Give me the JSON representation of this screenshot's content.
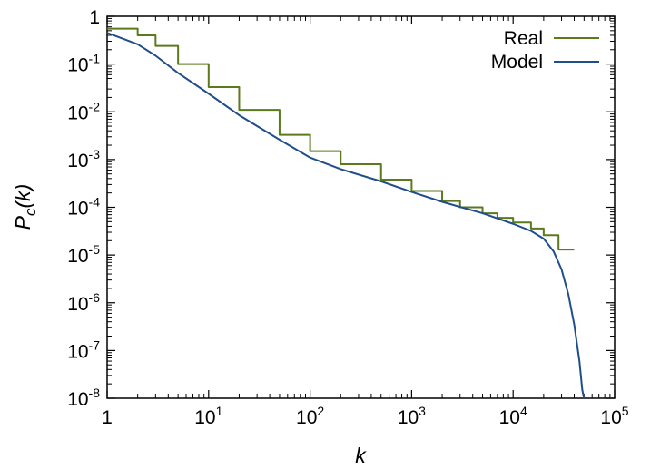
{
  "chart_data": {
    "type": "line",
    "title": "",
    "xlabel": "k",
    "ylabel": "P_c(k)",
    "xscale": "log",
    "yscale": "log",
    "xlim": [
      1,
      100000
    ],
    "ylim": [
      1e-08,
      1
    ],
    "grid": false,
    "legend_position": "top-right",
    "x_ticks": [
      {
        "value": 1,
        "base": "1",
        "exp": ""
      },
      {
        "value": 10,
        "base": "10",
        "exp": "1"
      },
      {
        "value": 100,
        "base": "10",
        "exp": "2"
      },
      {
        "value": 1000,
        "base": "10",
        "exp": "3"
      },
      {
        "value": 10000,
        "base": "10",
        "exp": "4"
      },
      {
        "value": 100000,
        "base": "10",
        "exp": "5"
      }
    ],
    "y_ticks": [
      {
        "value": 1,
        "base": "1",
        "exp": ""
      },
      {
        "value": 0.1,
        "base": "10",
        "exp": "-1"
      },
      {
        "value": 0.01,
        "base": "10",
        "exp": "-2"
      },
      {
        "value": 0.001,
        "base": "10",
        "exp": "-3"
      },
      {
        "value": 0.0001,
        "base": "10",
        "exp": "-4"
      },
      {
        "value": 1e-05,
        "base": "10",
        "exp": "-5"
      },
      {
        "value": 1e-06,
        "base": "10",
        "exp": "-6"
      },
      {
        "value": 1e-07,
        "base": "10",
        "exp": "-7"
      },
      {
        "value": 1e-08,
        "base": "10",
        "exp": "-8"
      }
    ],
    "series": [
      {
        "name": "Real",
        "color": "#5b7a1e",
        "step": true,
        "x": [
          1,
          2,
          3,
          5,
          10,
          20,
          50,
          100,
          200,
          500,
          1000,
          2000,
          3000,
          5000,
          7000,
          10000,
          15000,
          20000,
          28000,
          40000
        ],
        "y": [
          0.55,
          0.4,
          0.24,
          0.1,
          0.033,
          0.011,
          0.0033,
          0.0015,
          0.0008,
          0.00038,
          0.00022,
          0.000135,
          0.0001,
          7.5e-05,
          6e-05,
          4.8e-05,
          3.6e-05,
          2.6e-05,
          1.3e-05,
          1.3e-05
        ]
      },
      {
        "name": "Model",
        "color": "#1f4e8a",
        "step": false,
        "x": [
          1,
          2,
          3,
          5,
          10,
          20,
          50,
          100,
          200,
          500,
          1000,
          2000,
          5000,
          10000,
          15000,
          20000,
          25000,
          30000,
          35000,
          40000,
          45000,
          48000,
          50000
        ],
        "y": [
          0.45,
          0.26,
          0.15,
          0.065,
          0.024,
          0.0085,
          0.0026,
          0.0011,
          0.00063,
          0.00035,
          0.00021,
          0.00013,
          7.5e-05,
          4.5e-05,
          3.2e-05,
          2.2e-05,
          1.2e-05,
          5e-06,
          1.5e-06,
          3.5e-07,
          6e-08,
          1.5e-08,
          1e-08
        ]
      }
    ]
  }
}
